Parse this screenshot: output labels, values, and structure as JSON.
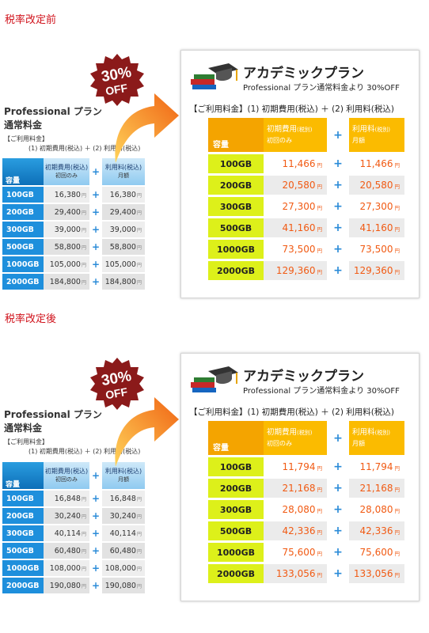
{
  "sections": [
    {
      "heading": "税率改定前",
      "pro": {
        "title_line1": "Professional プラン",
        "title_line2": "通常料金",
        "fee_label": "【ご利用料金】",
        "fee_formula": "(1) 初期費用(税込) ＋ (2) 利用料(税込)",
        "cap_header": "容量",
        "init_header": "初期費用(税込)",
        "init_sub": "初回のみ",
        "use_header": "利用料(税込)",
        "use_sub": "月額",
        "rows": [
          {
            "cap": "100GB",
            "init": "16,380",
            "use": "16,380"
          },
          {
            "cap": "200GB",
            "init": "29,400",
            "use": "29,400"
          },
          {
            "cap": "300GB",
            "init": "39,000",
            "use": "39,000"
          },
          {
            "cap": "500GB",
            "init": "58,800",
            "use": "58,800"
          },
          {
            "cap": "1000GB",
            "init": "105,000",
            "use": "105,000"
          },
          {
            "cap": "2000GB",
            "init": "184,800",
            "use": "184,800"
          }
        ]
      },
      "badge": {
        "pct": "30%",
        "off": "OFF"
      },
      "academic": {
        "title": "アカデミックプラン",
        "subtitle": "Professional プラン通常料金より 30%OFF",
        "fee_line": "【ご利用料金】(1) 初期費用(税込) ＋ (2) 利用料(税込)",
        "cap_header": "容量",
        "init_header": "初期費用",
        "init_tax": "(税別)",
        "init_sub": "初回のみ",
        "use_header": "利用料",
        "use_tax": "(税別)",
        "use_sub": "月額",
        "rows": [
          {
            "cap": "100GB",
            "init": "11,466",
            "use": "11,466"
          },
          {
            "cap": "200GB",
            "init": "20,580",
            "use": "20,580"
          },
          {
            "cap": "300GB",
            "init": "27,300",
            "use": "27,300"
          },
          {
            "cap": "500GB",
            "init": "41,160",
            "use": "41,160"
          },
          {
            "cap": "1000GB",
            "init": "73,500",
            "use": "73,500"
          },
          {
            "cap": "2000GB",
            "init": "129,360",
            "use": "129,360"
          }
        ]
      }
    },
    {
      "heading": "税率改定後",
      "pro": {
        "title_line1": "Professional プラン",
        "title_line2": "通常料金",
        "fee_label": "【ご利用料金】",
        "fee_formula": "(1) 初期費用(税込) ＋ (2) 利用料(税込)",
        "cap_header": "容量",
        "init_header": "初期費用(税込)",
        "init_sub": "初回のみ",
        "use_header": "利用料(税込)",
        "use_sub": "月額",
        "rows": [
          {
            "cap": "100GB",
            "init": "16,848",
            "use": "16,848"
          },
          {
            "cap": "200GB",
            "init": "30,240",
            "use": "30,240"
          },
          {
            "cap": "300GB",
            "init": "40,114",
            "use": "40,114"
          },
          {
            "cap": "500GB",
            "init": "60,480",
            "use": "60,480"
          },
          {
            "cap": "1000GB",
            "init": "108,000",
            "use": "108,000"
          },
          {
            "cap": "2000GB",
            "init": "190,080",
            "use": "190,080"
          }
        ]
      },
      "badge": {
        "pct": "30%",
        "off": "OFF"
      },
      "academic": {
        "title": "アカデミックプラン",
        "subtitle": "Professional プラン通常料金より 30%OFF",
        "fee_line": "【ご利用料金】(1) 初期費用(税込) ＋ (2) 利用料(税込)",
        "cap_header": "容量",
        "init_header": "初期費用",
        "init_tax": "(税別)",
        "init_sub": "初回のみ",
        "use_header": "利用料",
        "use_tax": "(税別)",
        "use_sub": "月額",
        "rows": [
          {
            "cap": "100GB",
            "init": "11,794",
            "use": "11,794"
          },
          {
            "cap": "200GB",
            "init": "21,168",
            "use": "21,168"
          },
          {
            "cap": "300GB",
            "init": "28,080",
            "use": "28,080"
          },
          {
            "cap": "500GB",
            "init": "42,336",
            "use": "42,336"
          },
          {
            "cap": "1000GB",
            "init": "75,600",
            "use": "75,600"
          },
          {
            "cap": "2000GB",
            "init": "133,056",
            "use": "133,056"
          }
        ]
      }
    }
  ],
  "yen_mark": "円",
  "plus_sign": "+",
  "colors": {
    "heading": "#d0121b",
    "price": "#f15a13",
    "cap_cell": "#ddf01a",
    "header_orange": "#fbbb00",
    "pro_blue": "#1e8fdc"
  }
}
